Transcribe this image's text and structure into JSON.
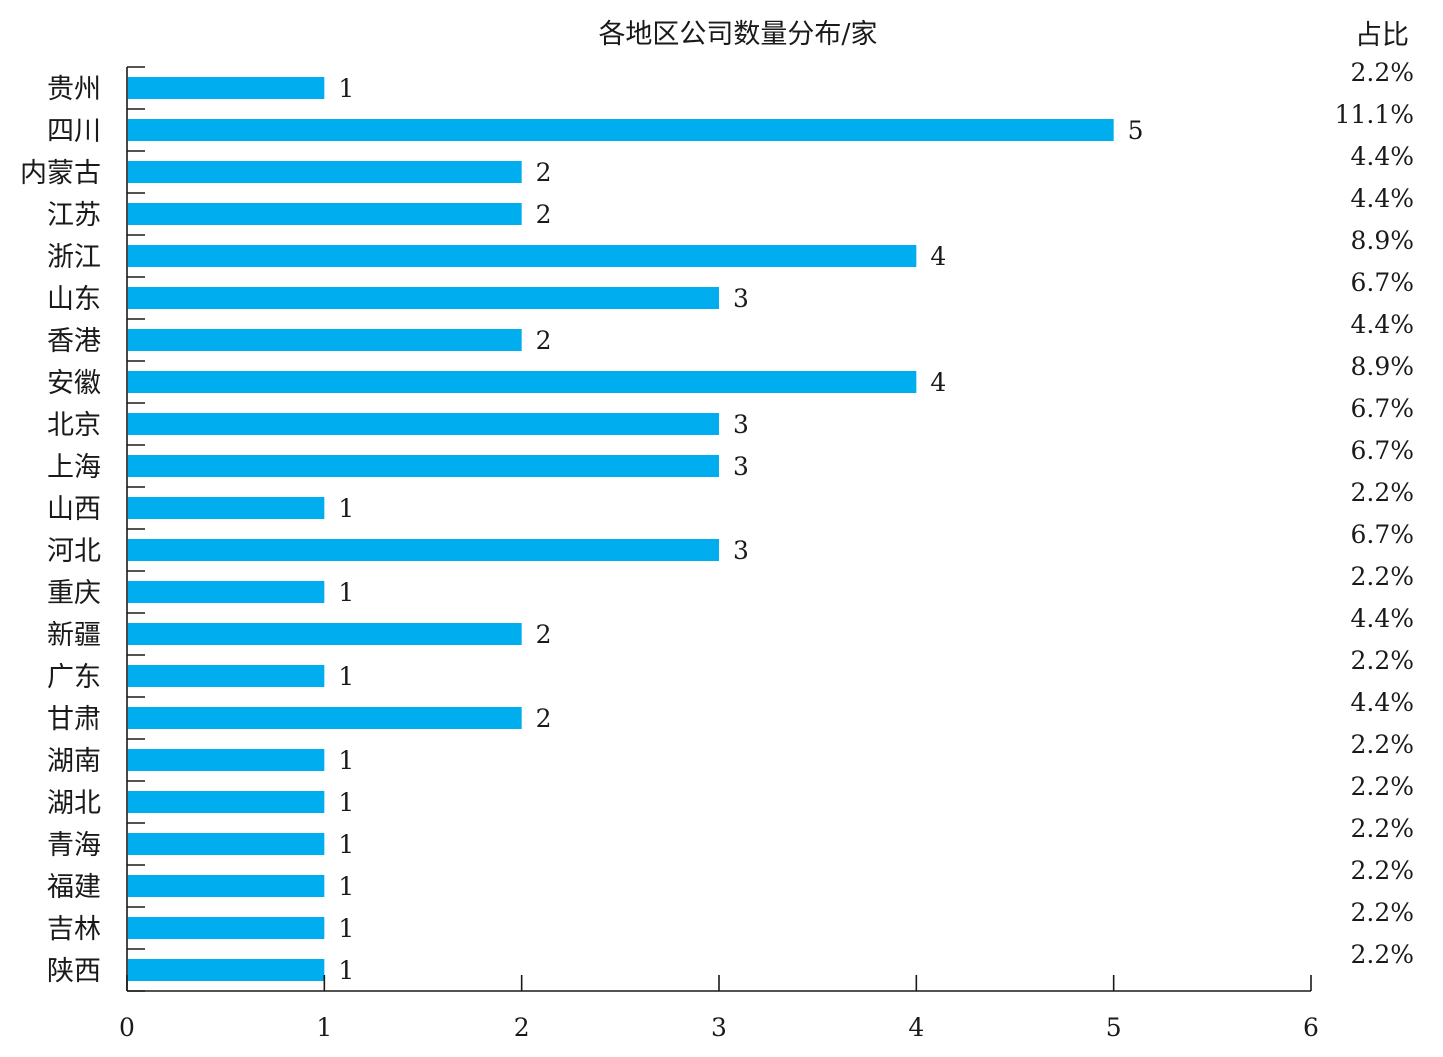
{
  "chart_data": {
    "type": "bar",
    "orientation": "horizontal",
    "title": "各地区公司数量分布/家",
    "share_header": "占比",
    "categories": [
      "贵州",
      "四川",
      "内蒙古",
      "江苏",
      "浙江",
      "山东",
      "香港",
      "安徽",
      "北京",
      "上海",
      "山西",
      "河北",
      "重庆",
      "新疆",
      "广东",
      "甘肃",
      "湖南",
      "湖北",
      "青海",
      "福建",
      "吉林",
      "陕西"
    ],
    "values": [
      1,
      5,
      2,
      2,
      4,
      3,
      2,
      4,
      3,
      3,
      1,
      3,
      1,
      2,
      1,
      2,
      1,
      1,
      1,
      1,
      1,
      1
    ],
    "value_labels": [
      "1",
      "5",
      "2",
      "2",
      "4",
      "3",
      "2",
      "4",
      "3",
      "3",
      "1",
      "3",
      "1",
      "2",
      "1",
      "2",
      "1",
      "1",
      "1",
      "1",
      "1",
      "1"
    ],
    "shares": [
      "2.2%",
      "11.1%",
      "4.4%",
      "4.4%",
      "8.9%",
      "6.7%",
      "4.4%",
      "8.9%",
      "6.7%",
      "6.7%",
      "2.2%",
      "6.7%",
      "2.2%",
      "4.4%",
      "2.2%",
      "4.4%",
      "2.2%",
      "2.2%",
      "2.2%",
      "2.2%",
      "2.2%",
      "2.2%"
    ],
    "xlim": [
      0,
      6
    ],
    "xticks": [
      "0",
      "1",
      "2",
      "3",
      "4",
      "5",
      "6"
    ],
    "bar_color": "#00aeef",
    "grid": false
  }
}
